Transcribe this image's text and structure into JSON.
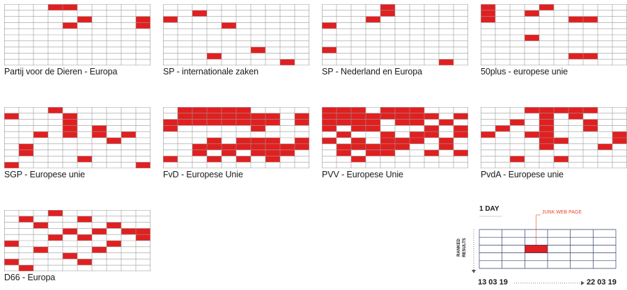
{
  "chart_data": [
    {
      "type": "heatmap",
      "title": "Partij voor de Dieren - Europa",
      "columns": 10,
      "rows": 10,
      "cells": [
        [
          3,
          0
        ],
        [
          4,
          0
        ],
        [
          4,
          3
        ],
        [
          5,
          2
        ],
        [
          9,
          2
        ],
        [
          9,
          3
        ]
      ]
    },
    {
      "type": "heatmap",
      "title": "SP - internationale zaken",
      "columns": 10,
      "rows": 10,
      "cells": [
        [
          0,
          2
        ],
        [
          2,
          1
        ],
        [
          4,
          3
        ],
        [
          3,
          8
        ],
        [
          6,
          7
        ],
        [
          8,
          9
        ]
      ]
    },
    {
      "type": "heatmap",
      "title": "SP - Nederland en Europa",
      "columns": 10,
      "rows": 10,
      "cells": [
        [
          0,
          3
        ],
        [
          0,
          7
        ],
        [
          3,
          2
        ],
        [
          4,
          0
        ],
        [
          4,
          1
        ],
        [
          8,
          9
        ]
      ]
    },
    {
      "type": "heatmap",
      "title": "50plus - europese unie",
      "columns": 10,
      "rows": 10,
      "cells": [
        [
          0,
          0
        ],
        [
          0,
          1
        ],
        [
          0,
          2
        ],
        [
          3,
          1
        ],
        [
          3,
          5
        ],
        [
          4,
          0
        ],
        [
          6,
          2
        ],
        [
          6,
          8
        ],
        [
          7,
          2
        ],
        [
          7,
          8
        ]
      ]
    },
    {
      "type": "heatmap",
      "title": "SGP - Europese unie",
      "columns": 10,
      "rows": 10,
      "cells": [
        [
          0,
          1
        ],
        [
          0,
          9
        ],
        [
          1,
          6
        ],
        [
          1,
          7
        ],
        [
          2,
          4
        ],
        [
          3,
          0
        ],
        [
          4,
          4
        ],
        [
          4,
          1
        ],
        [
          4,
          2
        ],
        [
          4,
          3
        ],
        [
          5,
          8
        ],
        [
          6,
          3
        ],
        [
          6,
          4
        ],
        [
          7,
          5
        ],
        [
          8,
          4
        ],
        [
          9,
          9
        ]
      ]
    },
    {
      "type": "heatmap",
      "title": "FvD - Europese Unie",
      "columns": 10,
      "rows": 10,
      "cells": [
        [
          0,
          2
        ],
        [
          0,
          3
        ],
        [
          1,
          0
        ],
        [
          1,
          1
        ],
        [
          1,
          2
        ],
        [
          2,
          0
        ],
        [
          2,
          1
        ],
        [
          2,
          2
        ],
        [
          2,
          6
        ],
        [
          2,
          7
        ],
        [
          3,
          0
        ],
        [
          3,
          1
        ],
        [
          3,
          2
        ],
        [
          3,
          5
        ],
        [
          3,
          6
        ],
        [
          4,
          0
        ],
        [
          4,
          1
        ],
        [
          4,
          2
        ],
        [
          4,
          6
        ],
        [
          4,
          7
        ],
        [
          5,
          0
        ],
        [
          5,
          1
        ],
        [
          5,
          2
        ],
        [
          5,
          5
        ],
        [
          5,
          6
        ],
        [
          6,
          1
        ],
        [
          6,
          2
        ],
        [
          6,
          3
        ],
        [
          6,
          5
        ],
        [
          6,
          6
        ],
        [
          6,
          7
        ],
        [
          7,
          1
        ],
        [
          7,
          2
        ],
        [
          7,
          5
        ],
        [
          7,
          6
        ],
        [
          7,
          7
        ],
        [
          7,
          8
        ],
        [
          8,
          6
        ],
        [
          8,
          7
        ],
        [
          9,
          1
        ],
        [
          9,
          2
        ],
        [
          9,
          5
        ],
        [
          9,
          6
        ],
        [
          0,
          8
        ],
        [
          3,
          8
        ],
        [
          5,
          8
        ]
      ]
    },
    {
      "type": "heatmap",
      "title": "PVV - Europese Unie",
      "columns": 10,
      "rows": 10,
      "cells": [
        [
          0,
          0
        ],
        [
          0,
          1
        ],
        [
          0,
          2
        ],
        [
          0,
          3
        ],
        [
          0,
          5
        ],
        [
          1,
          0
        ],
        [
          1,
          1
        ],
        [
          1,
          2
        ],
        [
          1,
          4
        ],
        [
          1,
          6
        ],
        [
          1,
          7
        ],
        [
          2,
          0
        ],
        [
          2,
          1
        ],
        [
          2,
          2
        ],
        [
          2,
          3
        ],
        [
          2,
          5
        ],
        [
          2,
          6
        ],
        [
          2,
          8
        ],
        [
          3,
          1
        ],
        [
          3,
          2
        ],
        [
          3,
          3
        ],
        [
          3,
          6
        ],
        [
          3,
          7
        ],
        [
          4,
          0
        ],
        [
          4,
          1
        ],
        [
          4,
          4
        ],
        [
          4,
          5
        ],
        [
          4,
          6
        ],
        [
          4,
          7
        ],
        [
          5,
          0
        ],
        [
          5,
          1
        ],
        [
          5,
          2
        ],
        [
          5,
          5
        ],
        [
          5,
          6
        ],
        [
          6,
          0
        ],
        [
          6,
          1
        ],
        [
          6,
          2
        ],
        [
          6,
          4
        ],
        [
          6,
          5
        ],
        [
          7,
          1
        ],
        [
          7,
          3
        ],
        [
          7,
          4
        ],
        [
          7,
          7
        ],
        [
          8,
          2
        ],
        [
          8,
          5
        ],
        [
          8,
          6
        ],
        [
          9,
          1
        ],
        [
          9,
          3
        ],
        [
          9,
          4
        ],
        [
          9,
          7
        ]
      ]
    },
    {
      "type": "heatmap",
      "title": "PvdA - Europese unie",
      "columns": 10,
      "rows": 10,
      "cells": [
        [
          0,
          4
        ],
        [
          1,
          3
        ],
        [
          2,
          2
        ],
        [
          2,
          8
        ],
        [
          3,
          0
        ],
        [
          3,
          4
        ],
        [
          4,
          0
        ],
        [
          4,
          1
        ],
        [
          4,
          2
        ],
        [
          4,
          3
        ],
        [
          4,
          4
        ],
        [
          4,
          5
        ],
        [
          4,
          6
        ],
        [
          5,
          0
        ],
        [
          5,
          5
        ],
        [
          5,
          8
        ],
        [
          6,
          0
        ],
        [
          6,
          1
        ],
        [
          7,
          0
        ],
        [
          7,
          2
        ],
        [
          7,
          3
        ],
        [
          8,
          6
        ],
        [
          9,
          4
        ],
        [
          9,
          5
        ]
      ]
    },
    {
      "type": "heatmap",
      "title": "D66 - Europa",
      "columns": 10,
      "rows": 10,
      "cells": [
        [
          0,
          5
        ],
        [
          0,
          8
        ],
        [
          1,
          1
        ],
        [
          1,
          9
        ],
        [
          2,
          2
        ],
        [
          2,
          6
        ],
        [
          3,
          0
        ],
        [
          3,
          4
        ],
        [
          4,
          3
        ],
        [
          4,
          7
        ],
        [
          5,
          1
        ],
        [
          5,
          4
        ],
        [
          5,
          8
        ],
        [
          6,
          3
        ],
        [
          6,
          6
        ],
        [
          7,
          2
        ],
        [
          7,
          5
        ],
        [
          8,
          3
        ],
        [
          9,
          3
        ],
        [
          9,
          4
        ]
      ]
    }
  ],
  "legend": {
    "day_label": "1 DAY",
    "junk_label": "JUNK WEB PAGE",
    "ranked_label": "RANKED RESULTS",
    "date_start": "13 03 19",
    "date_end": "22 03 19"
  },
  "colors": {
    "accent": "#e02020",
    "grid": "#9a9a9a",
    "legend_grid": "#2c3e6b",
    "junk": "#e8452a"
  }
}
